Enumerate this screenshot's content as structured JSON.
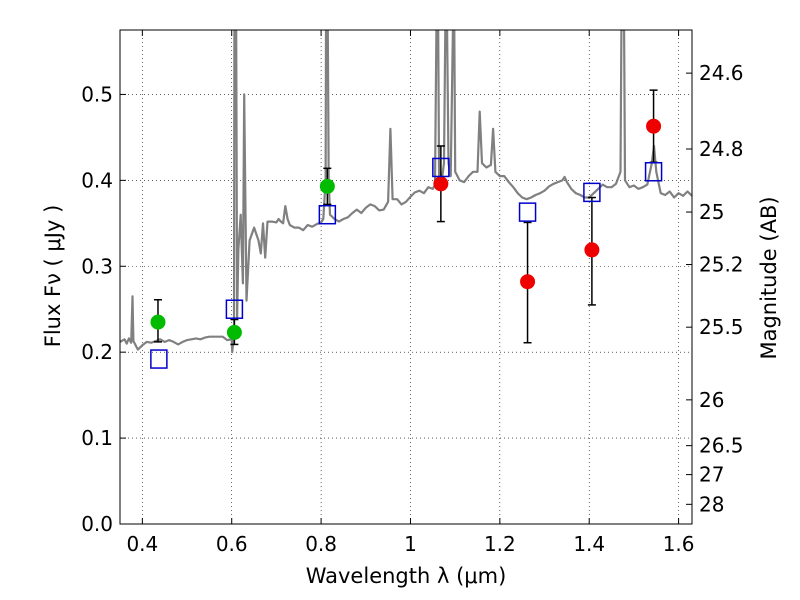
{
  "chart_data": {
    "type": "scatter",
    "xlabel": "Wavelength  λ (μm)",
    "ylabel": "Flux  Fν  ( μJy )",
    "y2label": "Magnitude (AB)",
    "xlim": [
      0.35,
      1.63
    ],
    "ylim": [
      0.0,
      0.575
    ],
    "grid": true,
    "x_ticks": [
      0.4,
      0.6,
      0.8,
      1.0,
      1.2,
      1.4,
      1.6
    ],
    "x_tick_labels": [
      "0.4",
      "0.6",
      "0.8",
      "1",
      "1.2",
      "1.4",
      "1.6"
    ],
    "y_ticks": [
      0.0,
      0.1,
      0.2,
      0.3,
      0.4,
      0.5
    ],
    "y_tick_labels": [
      "0.0",
      "0.1",
      "0.2",
      "0.3",
      "0.4",
      "0.5"
    ],
    "y2_ticks": [
      {
        "label": "24.6",
        "flux": 0.5248
      },
      {
        "label": "24.8",
        "flux": 0.4365
      },
      {
        "label": "25",
        "flux": 0.3631
      },
      {
        "label": "25.2",
        "flux": 0.302
      },
      {
        "label": "25.5",
        "flux": 0.2291
      },
      {
        "label": "26",
        "flux": 0.1445
      },
      {
        "label": "26.5",
        "flux": 0.0912
      },
      {
        "label": "27",
        "flux": 0.0575
      },
      {
        "label": "28",
        "flux": 0.0229
      }
    ],
    "colors": {
      "spectrum": "#808080",
      "optical_points": "#00bb00",
      "nir_points": "#ee0000",
      "model_points": "#0000cc",
      "errorbar": "#000000"
    },
    "series": [
      {
        "type": "errorbar",
        "color": "#00bb00",
        "points": [
          {
            "x": 0.435,
            "y": 0.235,
            "ylo": 0.212,
            "yhi": 0.261
          },
          {
            "x": 0.606,
            "y": 0.223,
            "ylo": 0.209,
            "yhi": 0.238
          },
          {
            "x": 0.814,
            "y": 0.393,
            "ylo": 0.372,
            "yhi": 0.414
          }
        ]
      },
      {
        "type": "errorbar",
        "color": "#ee0000",
        "points": [
          {
            "x": 1.068,
            "y": 0.396,
            "ylo": 0.352,
            "yhi": 0.44
          },
          {
            "x": 1.262,
            "y": 0.282,
            "ylo": 0.211,
            "yhi": 0.351
          },
          {
            "x": 1.406,
            "y": 0.319,
            "ylo": 0.255,
            "yhi": 0.38
          },
          {
            "x": 1.544,
            "y": 0.463,
            "ylo": 0.421,
            "yhi": 0.505
          }
        ]
      },
      {
        "type": "marker",
        "color": "#0000cc",
        "points": [
          {
            "x": 0.437,
            "y": 0.192
          },
          {
            "x": 0.606,
            "y": 0.25
          },
          {
            "x": 0.814,
            "y": 0.36
          },
          {
            "x": 1.068,
            "y": 0.415
          },
          {
            "x": 1.262,
            "y": 0.363
          },
          {
            "x": 1.406,
            "y": 0.386
          },
          {
            "x": 1.544,
            "y": 0.41
          }
        ]
      }
    ],
    "spectrum": [
      [
        0.35,
        0.212
      ],
      [
        0.36,
        0.215
      ],
      [
        0.365,
        0.21
      ],
      [
        0.37,
        0.216
      ],
      [
        0.375,
        0.211
      ],
      [
        0.378,
        0.265
      ],
      [
        0.38,
        0.213
      ],
      [
        0.39,
        0.203
      ],
      [
        0.4,
        0.208
      ],
      [
        0.41,
        0.212
      ],
      [
        0.42,
        0.211
      ],
      [
        0.43,
        0.213
      ],
      [
        0.44,
        0.215
      ],
      [
        0.45,
        0.212
      ],
      [
        0.46,
        0.214
      ],
      [
        0.47,
        0.212
      ],
      [
        0.48,
        0.209
      ],
      [
        0.49,
        0.212
      ],
      [
        0.5,
        0.214
      ],
      [
        0.51,
        0.215
      ],
      [
        0.52,
        0.216
      ],
      [
        0.53,
        0.215
      ],
      [
        0.54,
        0.217
      ],
      [
        0.55,
        0.218
      ],
      [
        0.56,
        0.218
      ],
      [
        0.57,
        0.218
      ],
      [
        0.58,
        0.218
      ],
      [
        0.59,
        0.214
      ],
      [
        0.6,
        0.215
      ],
      [
        0.601,
        0.2
      ],
      [
        0.605,
        0.22
      ],
      [
        0.606,
        0.575
      ],
      [
        0.61,
        0.575
      ],
      [
        0.612,
        0.24
      ],
      [
        0.615,
        0.32
      ],
      [
        0.62,
        0.36
      ],
      [
        0.625,
        0.28
      ],
      [
        0.628,
        0.5
      ],
      [
        0.633,
        0.26
      ],
      [
        0.64,
        0.33
      ],
      [
        0.65,
        0.345
      ],
      [
        0.66,
        0.33
      ],
      [
        0.665,
        0.315
      ],
      [
        0.67,
        0.35
      ],
      [
        0.675,
        0.31
      ],
      [
        0.68,
        0.352
      ],
      [
        0.69,
        0.352
      ],
      [
        0.7,
        0.351
      ],
      [
        0.705,
        0.355
      ],
      [
        0.71,
        0.352
      ],
      [
        0.715,
        0.35
      ],
      [
        0.72,
        0.37
      ],
      [
        0.725,
        0.355
      ],
      [
        0.73,
        0.348
      ],
      [
        0.74,
        0.345
      ],
      [
        0.75,
        0.345
      ],
      [
        0.76,
        0.342
      ],
      [
        0.77,
        0.348
      ],
      [
        0.78,
        0.346
      ],
      [
        0.79,
        0.349
      ],
      [
        0.8,
        0.351
      ],
      [
        0.805,
        0.355
      ],
      [
        0.81,
        0.4
      ],
      [
        0.811,
        0.575
      ],
      [
        0.815,
        0.575
      ],
      [
        0.817,
        0.4
      ],
      [
        0.82,
        0.36
      ],
      [
        0.83,
        0.355
      ],
      [
        0.84,
        0.352
      ],
      [
        0.85,
        0.355
      ],
      [
        0.86,
        0.357
      ],
      [
        0.87,
        0.362
      ],
      [
        0.88,
        0.366
      ],
      [
        0.89,
        0.362
      ],
      [
        0.9,
        0.368
      ],
      [
        0.91,
        0.372
      ],
      [
        0.92,
        0.37
      ],
      [
        0.93,
        0.365
      ],
      [
        0.94,
        0.366
      ],
      [
        0.95,
        0.375
      ],
      [
        0.955,
        0.46
      ],
      [
        0.96,
        0.378
      ],
      [
        0.97,
        0.378
      ],
      [
        0.98,
        0.372
      ],
      [
        0.99,
        0.375
      ],
      [
        1.0,
        0.381
      ],
      [
        1.01,
        0.386
      ],
      [
        1.02,
        0.388
      ],
      [
        1.03,
        0.385
      ],
      [
        1.04,
        0.392
      ],
      [
        1.05,
        0.39
      ],
      [
        1.055,
        0.395
      ],
      [
        1.058,
        0.575
      ],
      [
        1.062,
        0.575
      ],
      [
        1.064,
        0.4
      ],
      [
        1.07,
        0.4
      ],
      [
        1.075,
        0.42
      ],
      [
        1.078,
        0.575
      ],
      [
        1.082,
        0.575
      ],
      [
        1.085,
        0.42
      ],
      [
        1.09,
        0.405
      ],
      [
        1.095,
        0.575
      ],
      [
        1.098,
        0.575
      ],
      [
        1.1,
        0.41
      ],
      [
        1.11,
        0.4
      ],
      [
        1.12,
        0.398
      ],
      [
        1.13,
        0.405
      ],
      [
        1.14,
        0.41
      ],
      [
        1.15,
        0.41
      ],
      [
        1.155,
        0.48
      ],
      [
        1.16,
        0.42
      ],
      [
        1.17,
        0.415
      ],
      [
        1.18,
        0.418
      ],
      [
        1.185,
        0.46
      ],
      [
        1.19,
        0.41
      ],
      [
        1.2,
        0.405
      ],
      [
        1.21,
        0.405
      ],
      [
        1.22,
        0.398
      ],
      [
        1.23,
        0.392
      ],
      [
        1.24,
        0.385
      ],
      [
        1.25,
        0.38
      ],
      [
        1.26,
        0.378
      ],
      [
        1.27,
        0.38
      ],
      [
        1.28,
        0.383
      ],
      [
        1.29,
        0.385
      ],
      [
        1.3,
        0.388
      ],
      [
        1.31,
        0.393
      ],
      [
        1.32,
        0.396
      ],
      [
        1.33,
        0.398
      ],
      [
        1.34,
        0.4
      ],
      [
        1.345,
        0.404
      ],
      [
        1.35,
        0.398
      ],
      [
        1.36,
        0.39
      ],
      [
        1.37,
        0.385
      ],
      [
        1.38,
        0.383
      ],
      [
        1.39,
        0.38
      ],
      [
        1.4,
        0.38
      ],
      [
        1.41,
        0.385
      ],
      [
        1.42,
        0.39
      ],
      [
        1.43,
        0.395
      ],
      [
        1.44,
        0.392
      ],
      [
        1.45,
        0.392
      ],
      [
        1.46,
        0.396
      ],
      [
        1.47,
        0.41
      ],
      [
        1.472,
        0.575
      ],
      [
        1.478,
        0.575
      ],
      [
        1.48,
        0.4
      ],
      [
        1.49,
        0.392
      ],
      [
        1.5,
        0.394
      ],
      [
        1.51,
        0.39
      ],
      [
        1.52,
        0.392
      ],
      [
        1.53,
        0.395
      ],
      [
        1.54,
        0.42
      ],
      [
        1.545,
        0.44
      ],
      [
        1.55,
        0.41
      ],
      [
        1.56,
        0.385
      ],
      [
        1.57,
        0.383
      ],
      [
        1.58,
        0.387
      ],
      [
        1.59,
        0.38
      ],
      [
        1.6,
        0.385
      ],
      [
        1.61,
        0.382
      ],
      [
        1.62,
        0.387
      ],
      [
        1.63,
        0.382
      ]
    ]
  }
}
